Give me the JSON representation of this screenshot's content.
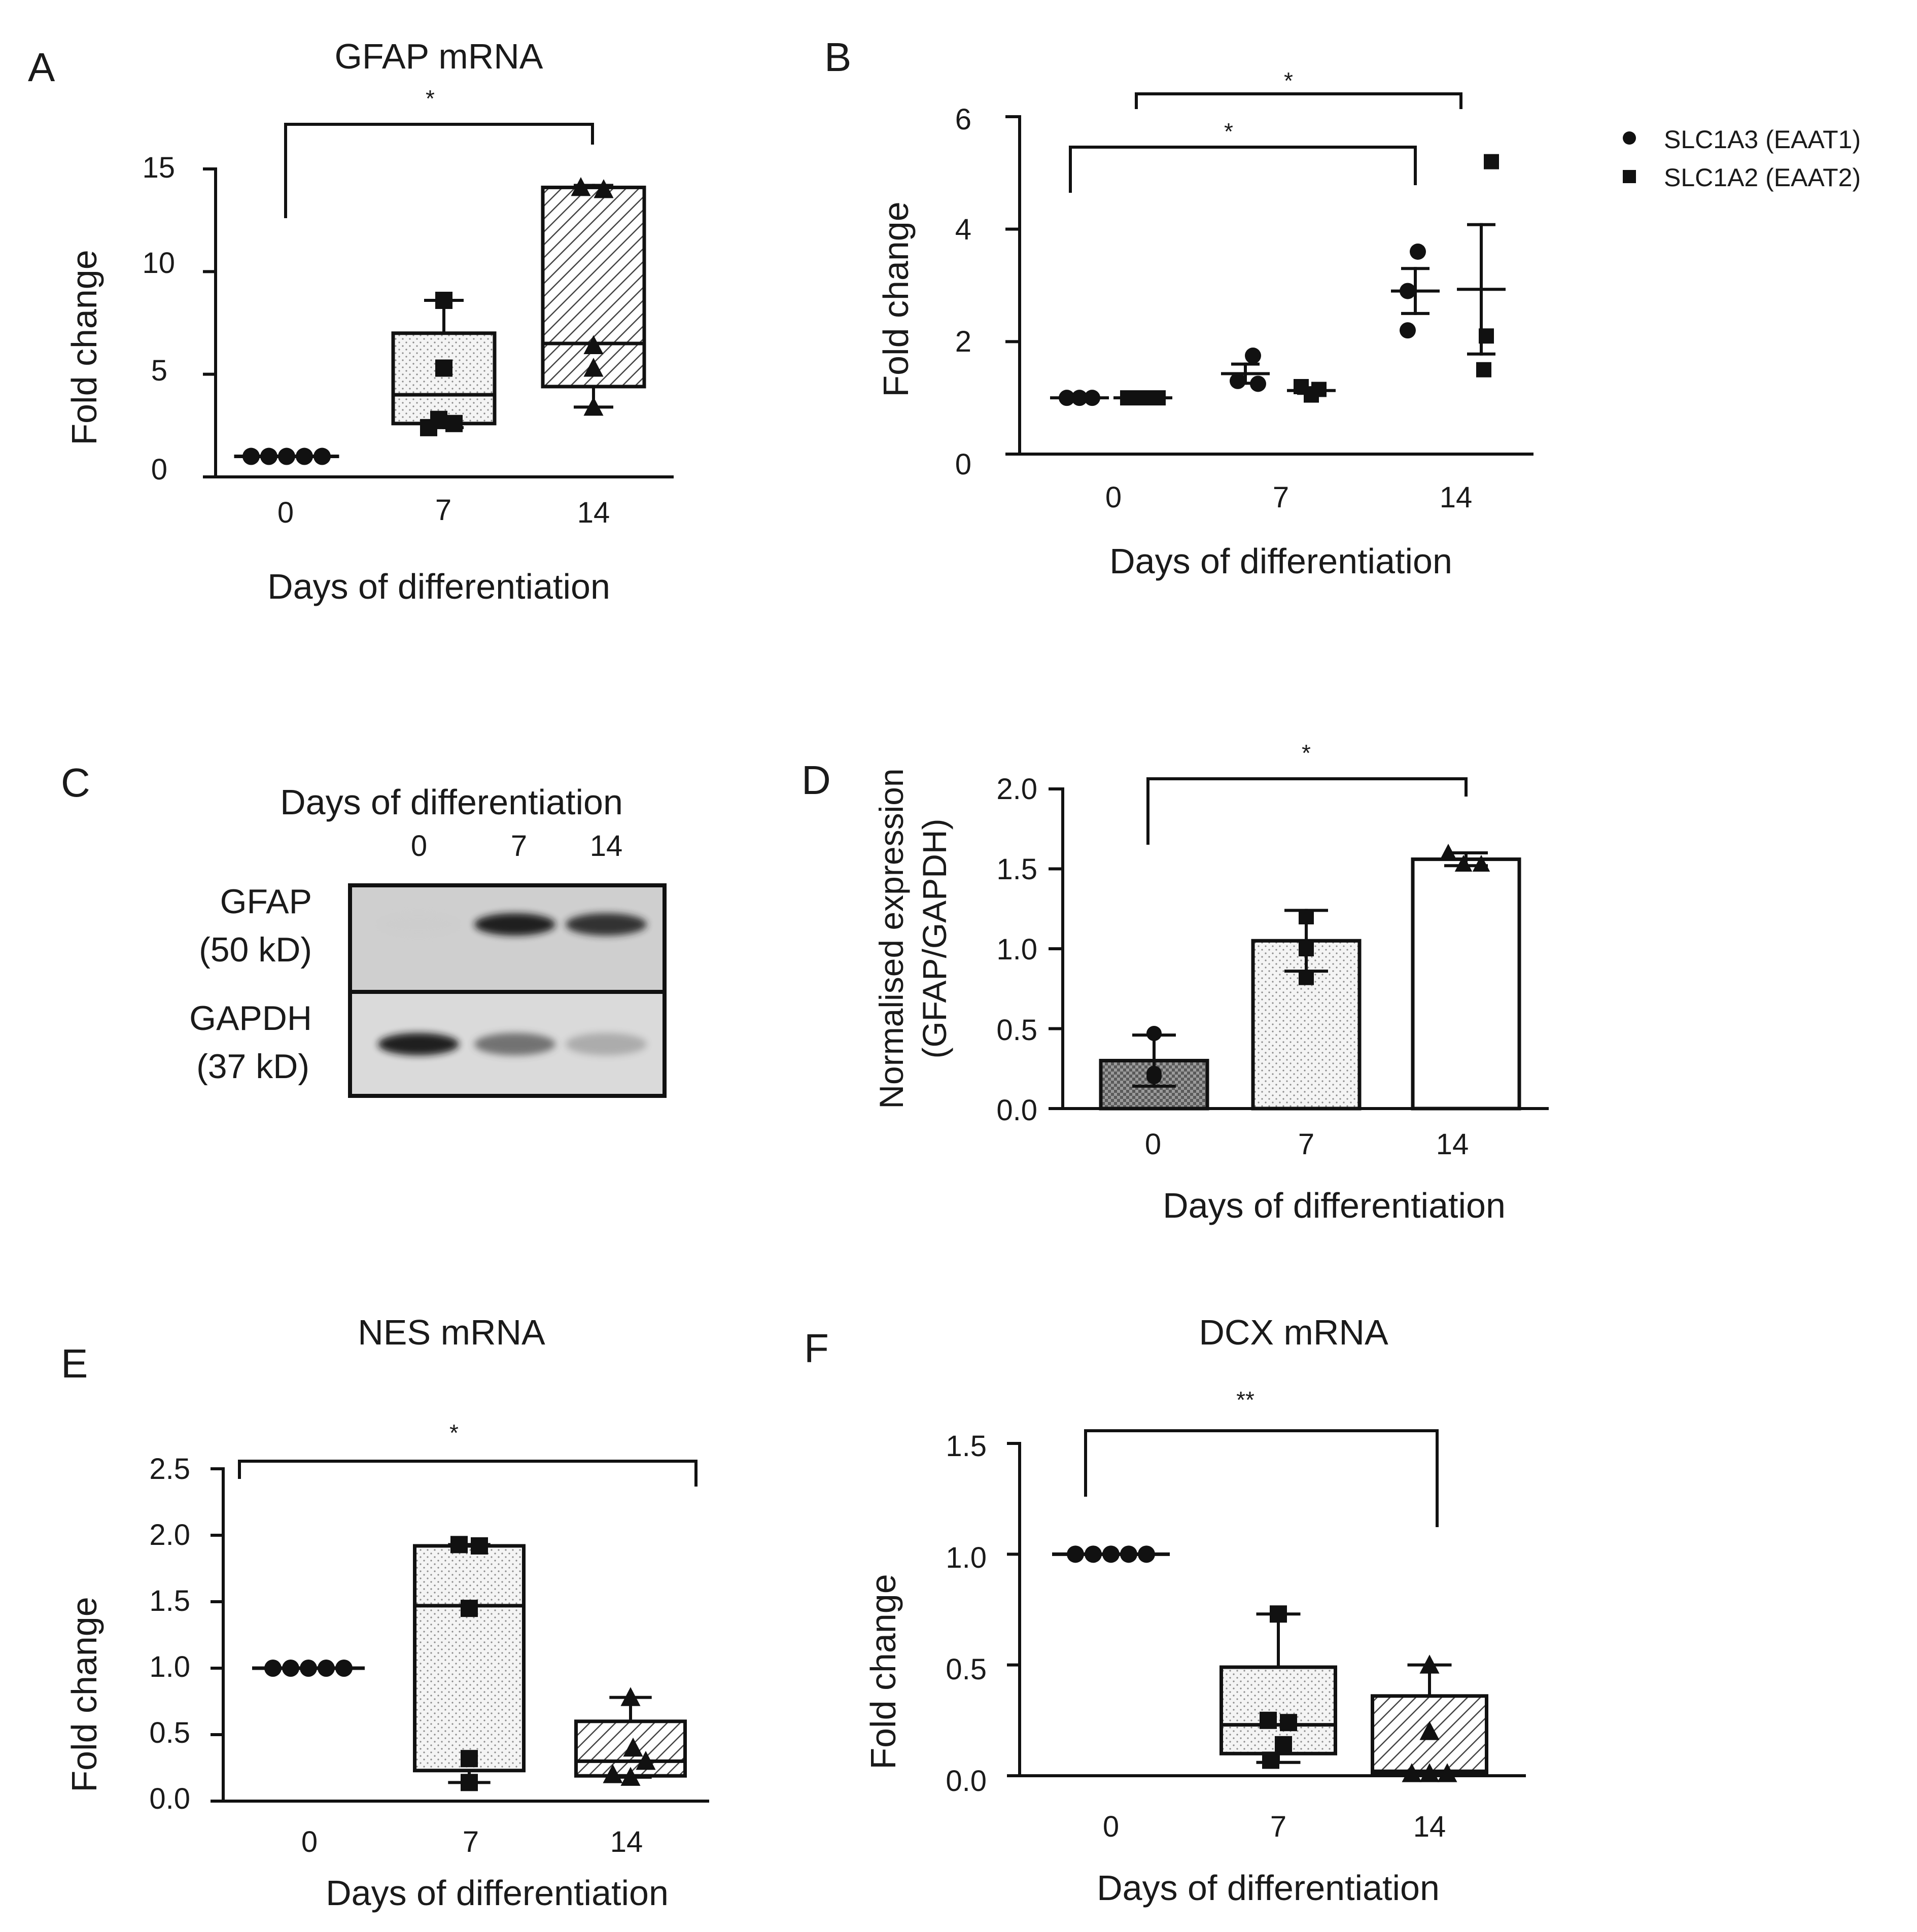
{
  "figure": {
    "description_free": true
  },
  "panels": {
    "A": {
      "letter": "A",
      "title": "GFAP mRNA",
      "ylabel": "Fold change",
      "xlabel": "Days of differentiation",
      "yticks": [
        "0",
        "5",
        "10",
        "15"
      ],
      "xticks": [
        "0",
        "7",
        "14"
      ],
      "significance": [
        "*"
      ]
    },
    "B": {
      "letter": "B",
      "ylabel": "Fold change",
      "xlabel": "Days of differentiation",
      "yticks": [
        "0",
        "2",
        "4",
        "6"
      ],
      "xticks": [
        "0",
        "7",
        "14"
      ],
      "significance": [
        "*",
        "*"
      ],
      "legend": [
        "SLC1A3 (EAAT1)",
        "SLC1A2 (EAAT2)"
      ]
    },
    "C": {
      "letter": "C",
      "header": "Days of differentiation",
      "lanes": [
        "0",
        "7",
        "14"
      ],
      "rows": [
        {
          "protein": "GFAP",
          "size": "(50 kD)"
        },
        {
          "protein": "GAPDH",
          "size": "(37 kD)"
        }
      ]
    },
    "D": {
      "letter": "D",
      "ylabel_line1": "Normalised expression",
      "ylabel_line2": "(GFAP/GAPDH)",
      "xlabel": "Days of differentiation",
      "yticks": [
        "0.0",
        "0.5",
        "1.0",
        "1.5",
        "2.0"
      ],
      "xticks": [
        "0",
        "7",
        "14"
      ],
      "significance": [
        "*"
      ]
    },
    "E": {
      "letter": "E",
      "title": "NES mRNA",
      "ylabel": "Fold change",
      "xlabel": "Days of differentiation",
      "yticks": [
        "0.0",
        "0.5",
        "1.0",
        "1.5",
        "2.0",
        "2.5"
      ],
      "xticks": [
        "0",
        "7",
        "14"
      ],
      "significance": [
        "*"
      ]
    },
    "F": {
      "letter": "F",
      "title": "DCX mRNA",
      "ylabel": "Fold change",
      "xlabel": "Days of differentiation",
      "yticks": [
        "0.0",
        "0.5",
        "1.0",
        "1.5"
      ],
      "xticks": [
        "0",
        "7",
        "14"
      ],
      "significance": [
        "**"
      ]
    }
  },
  "chart_data": [
    {
      "panel": "A",
      "type": "box",
      "title": "GFAP mRNA",
      "xlabel": "Days of differentiation",
      "ylabel": "Fold change",
      "ylim": [
        0,
        15
      ],
      "categories": [
        "0",
        "7",
        "14"
      ],
      "boxes": [
        {
          "category": "0",
          "points": [
            1,
            1,
            1,
            1,
            1
          ],
          "whisker_low": 1,
          "q1": 1,
          "median": 1,
          "q3": 1,
          "whisker_high": 1
        },
        {
          "category": "7",
          "points": [
            8.6,
            5.3,
            2.8,
            2.4,
            2.6
          ],
          "whisker_low": 2.4,
          "q1": 2.6,
          "median": 4.0,
          "q3": 7.0,
          "whisker_high": 8.6
        },
        {
          "category": "14",
          "points": [
            14.1,
            14.0,
            6.4,
            5.3,
            3.4
          ],
          "whisker_low": 3.4,
          "q1": 4.4,
          "median": 6.5,
          "q3": 14.1,
          "whisker_high": 14.2
        }
      ],
      "significance": [
        {
          "from": "0",
          "to": "14",
          "label": "*"
        }
      ]
    },
    {
      "panel": "B",
      "type": "scatter",
      "xlabel": "Days of differentiation",
      "ylabel": "Fold change",
      "ylim": [
        0,
        6
      ],
      "categories": [
        "0",
        "7",
        "14"
      ],
      "series": [
        {
          "name": "SLC1A3 (EAAT1)",
          "marker": "circle",
          "points": {
            "0": [
              1.0,
              1.0,
              1.0
            ],
            "7": [
              1.75,
              1.3,
              1.25
            ],
            "14": [
              3.6,
              2.9,
              2.2
            ]
          },
          "mean": {
            "0": 1.0,
            "7": 1.43,
            "14": 2.9
          },
          "sem": {
            "0": 0.0,
            "7": 0.17,
            "14": 0.4
          }
        },
        {
          "name": "SLC1A2 (EAAT2)",
          "marker": "square",
          "points": {
            "0": [
              1.0,
              1.0,
              1.0
            ],
            "7": [
              1.2,
              1.15,
              1.05
            ],
            "14": [
              5.2,
              2.1,
              1.5
            ]
          },
          "mean": {
            "0": 1.0,
            "7": 1.13,
            "14": 2.93
          },
          "sem": {
            "0": 0.0,
            "7": 0.05,
            "14": 1.15
          }
        }
      ],
      "significance": [
        {
          "from": "0",
          "to": "14",
          "label": "*"
        },
        {
          "from": "0",
          "to": "14",
          "label": "*"
        }
      ]
    },
    {
      "panel": "D",
      "type": "bar",
      "xlabel": "Days of differentiation",
      "ylabel": "Normalised expression (GFAP/GAPDH)",
      "ylim": [
        0,
        2.0
      ],
      "categories": [
        "0",
        "7",
        "14"
      ],
      "values": [
        0.3,
        1.05,
        1.56
      ],
      "error": [
        0.16,
        0.19,
        0.04
      ],
      "points": {
        "0": [
          0.47,
          0.22,
          0.2
        ],
        "7": [
          1.2,
          1.0,
          0.82
        ],
        "14": [
          1.6,
          1.53,
          1.53
        ]
      },
      "significance": [
        {
          "from": "0",
          "to": "14",
          "label": "*"
        }
      ]
    },
    {
      "panel": "E",
      "type": "box",
      "title": "NES mRNA",
      "xlabel": "Days of differentiation",
      "ylabel": "Fold change",
      "ylim": [
        0,
        2.5
      ],
      "categories": [
        "0",
        "7",
        "14"
      ],
      "boxes": [
        {
          "category": "0",
          "points": [
            1,
            1,
            1,
            1,
            1
          ],
          "whisker_low": 1,
          "q1": 1,
          "median": 1,
          "q3": 1,
          "whisker_high": 1
        },
        {
          "category": "7",
          "points": [
            1.93,
            1.92,
            1.45,
            0.32,
            0.14
          ],
          "whisker_low": 0.14,
          "q1": 0.23,
          "median": 1.47,
          "q3": 1.92,
          "whisker_high": 1.93
        },
        {
          "category": "14",
          "points": [
            0.78,
            0.4,
            0.3,
            0.2,
            0.18
          ],
          "whisker_low": 0.18,
          "q1": 0.19,
          "median": 0.3,
          "q3": 0.6,
          "whisker_high": 0.78
        }
      ],
      "significance": [
        {
          "from": "0",
          "to": "14",
          "label": "*"
        }
      ]
    },
    {
      "panel": "F",
      "type": "box",
      "title": "DCX mRNA",
      "xlabel": "Days of differentiation",
      "ylabel": "Fold change",
      "ylim": [
        0,
        1.5
      ],
      "categories": [
        "0",
        "7",
        "14"
      ],
      "boxes": [
        {
          "category": "0",
          "points": [
            1,
            1,
            1,
            1,
            1
          ],
          "whisker_low": 1,
          "q1": 1,
          "median": 1,
          "q3": 1,
          "whisker_high": 1
        },
        {
          "category": "7",
          "points": [
            0.73,
            0.25,
            0.24,
            0.14,
            0.07
          ],
          "whisker_low": 0.06,
          "q1": 0.1,
          "median": 0.23,
          "q3": 0.49,
          "whisker_high": 0.73
        },
        {
          "category": "14",
          "points": [
            0.5,
            0.2,
            0.01,
            0.01,
            0.01
          ],
          "whisker_low": 0.0,
          "q1": 0.01,
          "median": 0.02,
          "q3": 0.36,
          "whisker_high": 0.5
        }
      ],
      "significance": [
        {
          "from": "0",
          "to": "14",
          "label": "**"
        }
      ]
    }
  ],
  "blot": {
    "lane_intensity": {
      "GFAP": [
        0.02,
        0.95,
        0.9
      ],
      "GAPDH": [
        0.95,
        0.7,
        0.45
      ]
    }
  }
}
